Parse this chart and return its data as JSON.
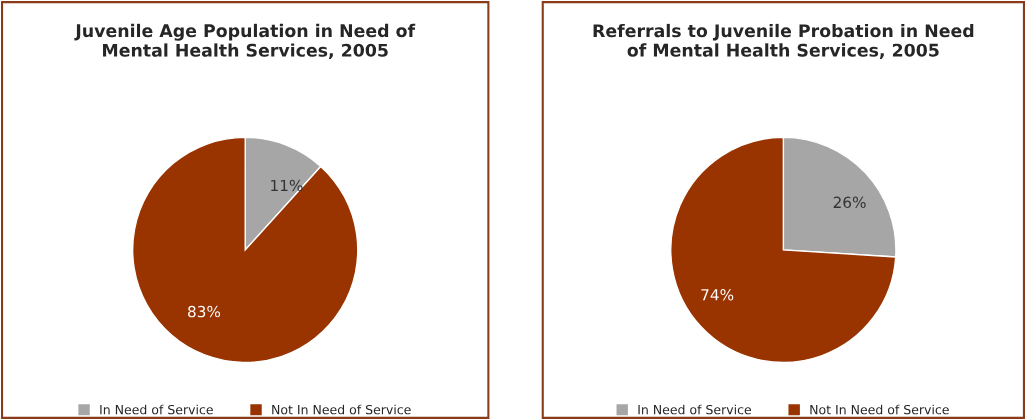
{
  "chart_data": [
    {
      "type": "pie",
      "title": "Juvenile Age Population in Need of\nMental Health Services, 2005",
      "categories": [
        "In Need of Service",
        "Not In Need of Service"
      ],
      "values": [
        11,
        83
      ],
      "value_labels": [
        "11%",
        "83%"
      ],
      "colors": [
        "#a6a6a6",
        "#993300"
      ],
      "legend": "bottom"
    },
    {
      "type": "pie",
      "title": "Referrals to Juvenile Probation in Need\nof Mental Health Services, 2005",
      "categories": [
        "In Need of Service",
        "Not In Need of Service"
      ],
      "values": [
        26,
        74
      ],
      "value_labels": [
        "26%",
        "74%"
      ],
      "colors": [
        "#a6a6a6",
        "#993300"
      ],
      "legend": "bottom"
    }
  ]
}
